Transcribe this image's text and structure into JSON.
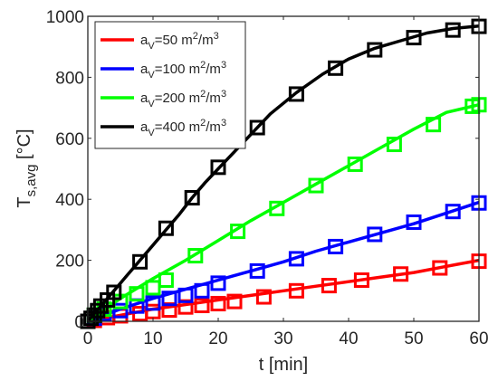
{
  "chart_data": {
    "type": "line",
    "title": "",
    "xlabel": "t [min]",
    "ylabel_main": "T",
    "ylabel_sub": "s,avg",
    "ylabel_unit": " [°C]",
    "xlim": [
      0,
      60
    ],
    "ylim": [
      0,
      1000
    ],
    "xticks": [
      0,
      10,
      20,
      30,
      40,
      50,
      60
    ],
    "yticks": [
      0,
      200,
      400,
      600,
      800,
      1000
    ],
    "grid": false,
    "legend_position": "top-left",
    "series": [
      {
        "name": "a_V=50 m^2/m^3",
        "legend_main": "a",
        "legend_sub": "V",
        "legend_rest": "=50 m",
        "legend_exp1": "2",
        "legend_mid": "/m",
        "legend_exp2": "3",
        "color": "#ff0000",
        "line": {
          "x": [
            0,
            5,
            10,
            15,
            20,
            25,
            30,
            35,
            40,
            45,
            50,
            55,
            60
          ],
          "y": [
            0,
            20,
            40,
            55,
            70,
            85,
            100,
            115,
            130,
            145,
            160,
            180,
            200
          ]
        },
        "markers": {
          "x": [
            0,
            1,
            3,
            5,
            8,
            10,
            12.5,
            15,
            17.5,
            20,
            22.5,
            27,
            32,
            37,
            42,
            48,
            54,
            60
          ],
          "y": [
            0,
            3,
            12,
            18,
            25,
            32,
            37,
            47,
            52,
            58,
            65,
            80,
            100,
            117,
            135,
            155,
            175,
            197
          ]
        }
      },
      {
        "name": "a_V=100 m^2/m^3",
        "legend_main": "a",
        "legend_sub": "V",
        "legend_rest": "=100 m",
        "legend_exp1": "2",
        "legend_mid": "/m",
        "legend_exp2": "3",
        "color": "#0000ff",
        "line": {
          "x": [
            0,
            5,
            10,
            15,
            20,
            25,
            30,
            35,
            40,
            45,
            50,
            55,
            60
          ],
          "y": [
            0,
            40,
            75,
            105,
            135,
            165,
            195,
            230,
            260,
            290,
            320,
            355,
            390
          ]
        },
        "markers": {
          "x": [
            0,
            1,
            2.5,
            5,
            7.5,
            10,
            12.5,
            15,
            17.5,
            20,
            26,
            32,
            38,
            44,
            50,
            56,
            60
          ],
          "y": [
            0,
            10,
            25,
            35,
            50,
            60,
            75,
            85,
            100,
            125,
            165,
            205,
            245,
            285,
            325,
            360,
            388
          ]
        }
      },
      {
        "name": "a_V=200 m^2/m^3",
        "legend_main": "a",
        "legend_sub": "V",
        "legend_rest": "=200 m",
        "legend_exp1": "2",
        "legend_mid": "/m",
        "legend_exp2": "3",
        "color": "#00ff00",
        "line": {
          "x": [
            0,
            5,
            10,
            15,
            20,
            25,
            30,
            35,
            40,
            45,
            50,
            55,
            60
          ],
          "y": [
            0,
            75,
            140,
            200,
            265,
            330,
            390,
            450,
            510,
            570,
            630,
            685,
            710
          ]
        },
        "markers": {
          "x": [
            0,
            1,
            2.5,
            5,
            7.5,
            10,
            12,
            16.5,
            23,
            29,
            35,
            41,
            47,
            53,
            59,
            60
          ],
          "y": [
            0,
            20,
            40,
            65,
            90,
            110,
            135,
            215,
            295,
            370,
            445,
            515,
            580,
            645,
            705,
            710
          ]
        }
      },
      {
        "name": "a_V=400 m^2/m^3",
        "legend_main": "a",
        "legend_sub": "V",
        "legend_rest": "=400 m",
        "legend_exp1": "2",
        "legend_mid": "/m",
        "legend_exp2": "3",
        "color": "#000000",
        "line": {
          "x": [
            0,
            2,
            4,
            6,
            8,
            10,
            12,
            14,
            16,
            18,
            20,
            24,
            28,
            32,
            36,
            40,
            44,
            48,
            52,
            56,
            60
          ],
          "y": [
            0,
            50,
            100,
            150,
            200,
            250,
            300,
            350,
            405,
            455,
            500,
            590,
            680,
            750,
            810,
            860,
            895,
            920,
            945,
            960,
            968
          ]
        },
        "markers": {
          "x": [
            0,
            0.5,
            1,
            1.5,
            2,
            3,
            4,
            8,
            12,
            16,
            20,
            26,
            32,
            38,
            44,
            50,
            56,
            60
          ],
          "y": [
            0,
            10,
            20,
            35,
            50,
            70,
            95,
            195,
            305,
            405,
            505,
            635,
            745,
            830,
            890,
            930,
            955,
            967
          ]
        }
      }
    ]
  }
}
